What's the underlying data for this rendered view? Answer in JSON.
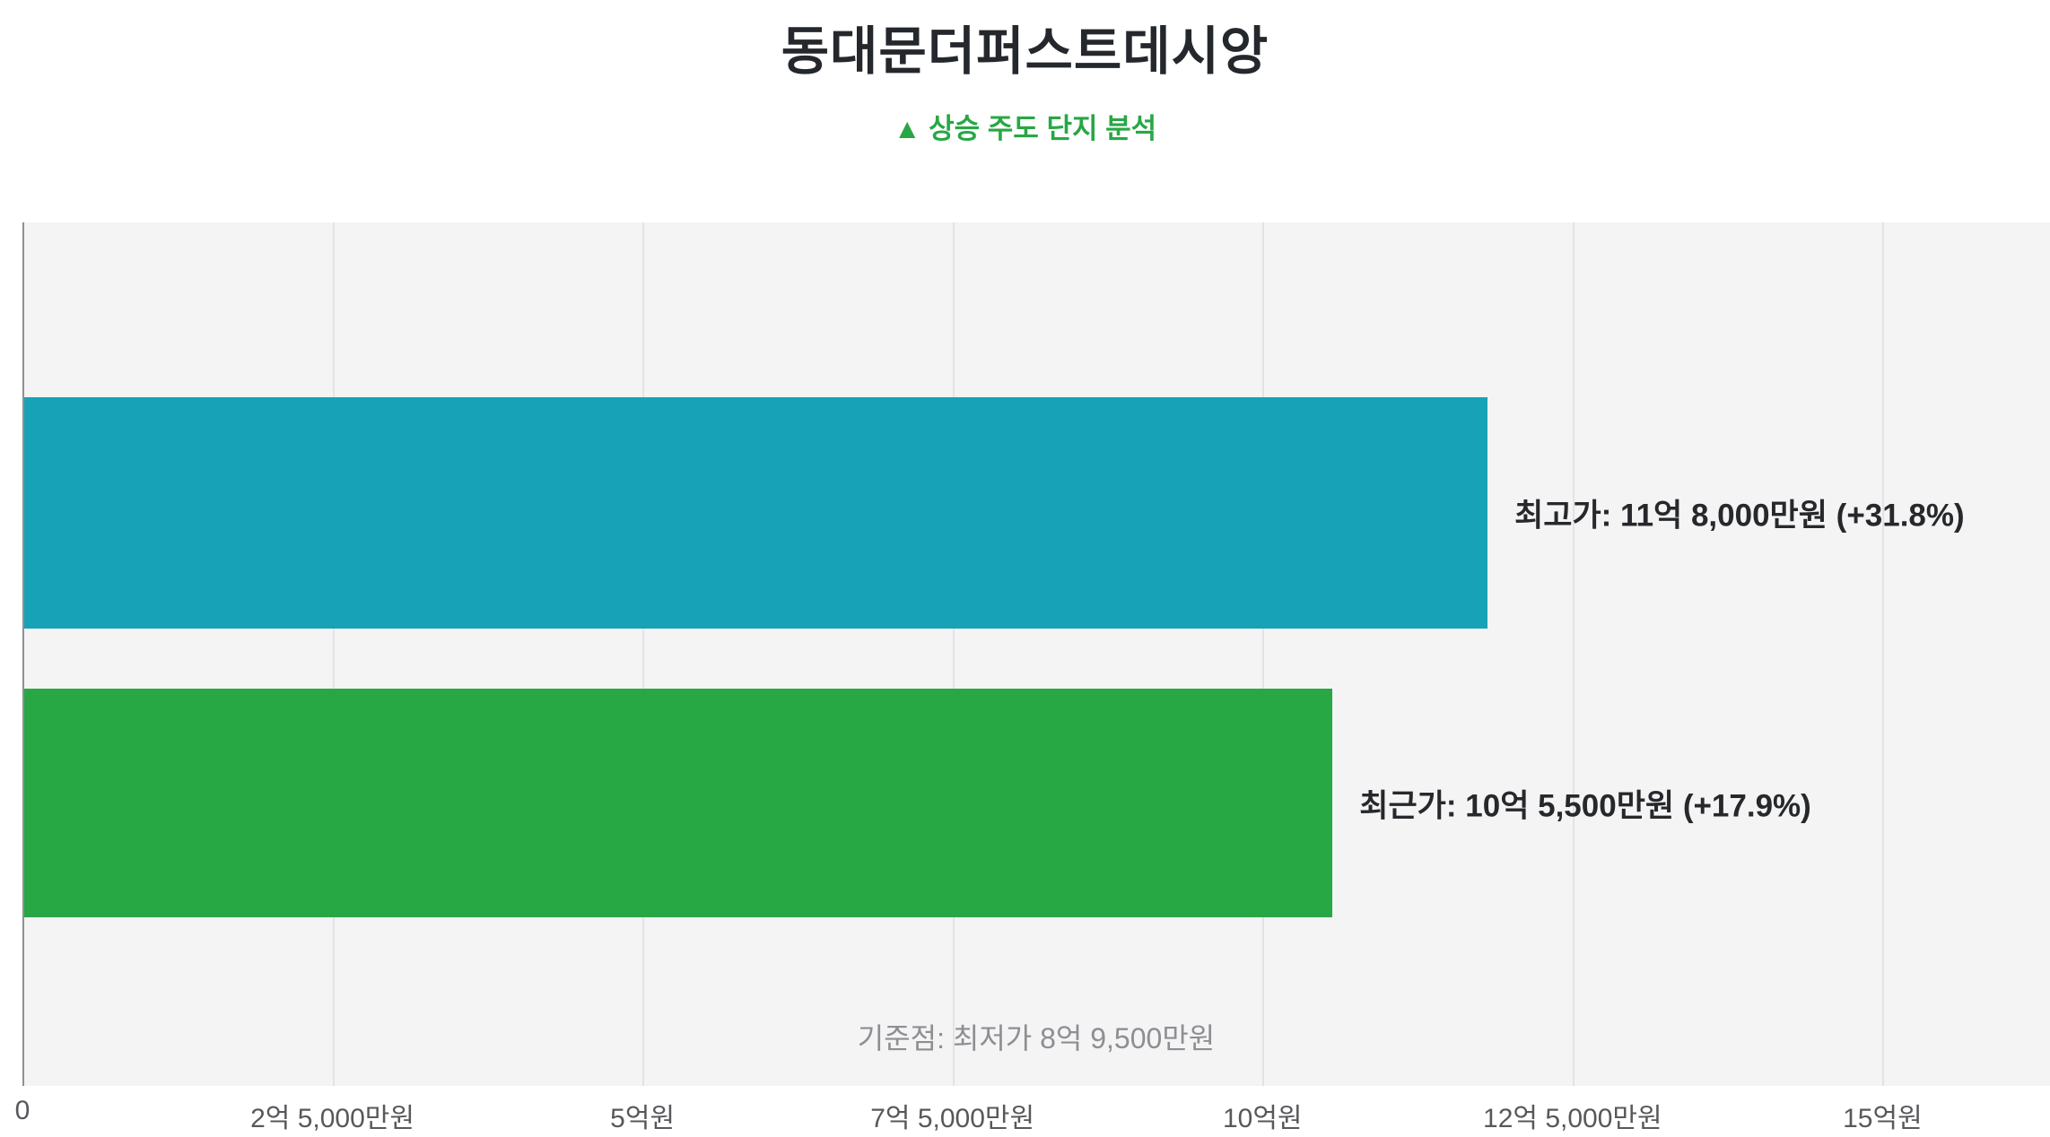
{
  "header": {
    "title": "동대문더퍼스트데시앙",
    "subtitle": "▲ 상승 주도 단지 분석",
    "subtitle_color": "#28a745"
  },
  "chart_data": {
    "type": "bar",
    "orientation": "horizontal",
    "title": "동대문더퍼스트데시앙",
    "subtitle": "▲ 상승 주도 단지 분석",
    "unit": "만원",
    "categories": [
      "최고가",
      "최근가"
    ],
    "series": [
      {
        "name": "최고가",
        "value": 118000,
        "pct_change": "+31.8%",
        "label": "최고가: 11억 8,000만원 (+31.8%)",
        "color": "#18a2b8"
      },
      {
        "name": "최근가",
        "value": 105500,
        "pct_change": "+17.9%",
        "label": "최근가: 10억 5,500만원 (+17.9%)",
        "color": "#28a745"
      }
    ],
    "baseline_note": "기준점: 최저가 8억 9,500만원",
    "baseline_value": 89500,
    "x_ticks": [
      {
        "value": 0,
        "label": "0"
      },
      {
        "value": 25000,
        "label": "2억 5,000만원"
      },
      {
        "value": 50000,
        "label": "5억원"
      },
      {
        "value": 75000,
        "label": "7억 5,000만원"
      },
      {
        "value": 100000,
        "label": "10억원"
      },
      {
        "value": 125000,
        "label": "12억 5,000만원"
      },
      {
        "value": 150000,
        "label": "15억원"
      }
    ],
    "xlim": [
      0,
      163500
    ],
    "grid": true,
    "plot_background": "#f4f4f5",
    "legend": "none"
  }
}
